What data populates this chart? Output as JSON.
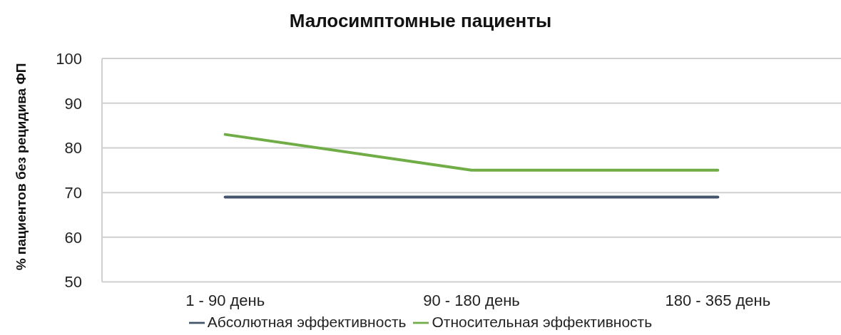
{
  "chart_data": {
    "type": "line",
    "title": "Малосимптомные пациенты",
    "ylabel": "% пациентов без рецидива ФП",
    "categories": [
      "1 - 90 день",
      "90 - 180 день",
      "180 - 365 день"
    ],
    "series": [
      {
        "name": "Абсолютная эффективность",
        "color": "#44546a",
        "values": [
          69,
          69,
          69
        ]
      },
      {
        "name": "Относительная эффективность",
        "color": "#70ad47",
        "values": [
          83,
          75,
          75
        ]
      }
    ],
    "ylim": [
      50,
      100
    ],
    "yticks": [
      50,
      60,
      70,
      80,
      90,
      100
    ],
    "grid": "y",
    "legend": "bottom",
    "marker": "none",
    "line_style": "solid"
  }
}
